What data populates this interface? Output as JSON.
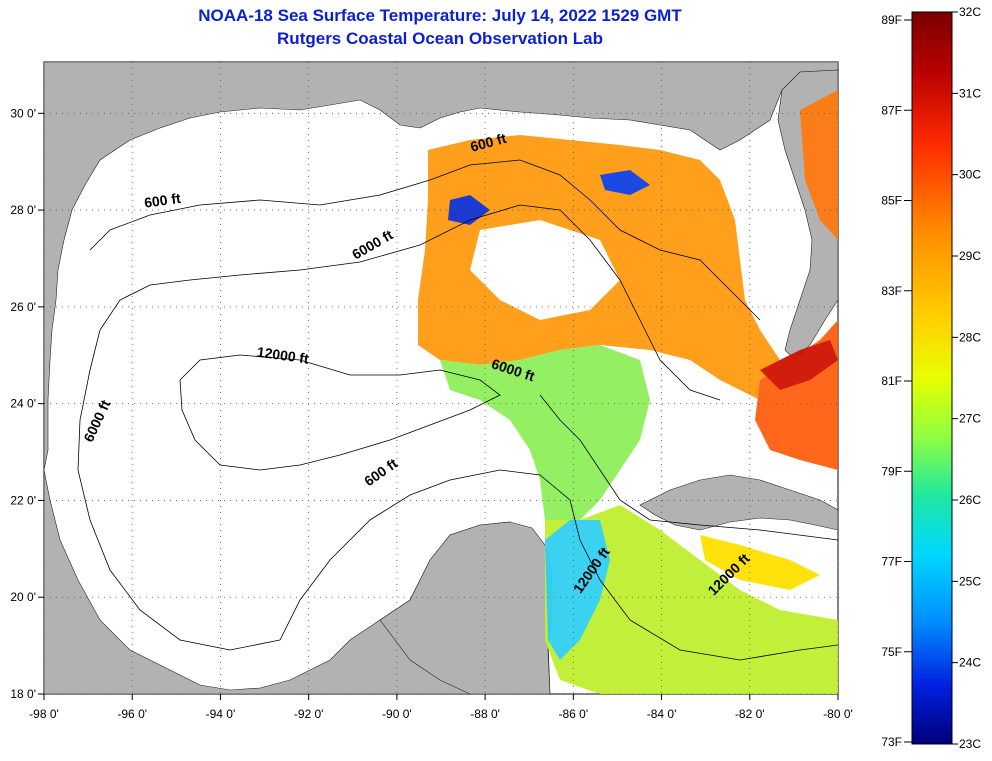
{
  "title": "NOAA-18 Sea Surface Temperature:  July 14, 2022 1529 GMT",
  "subtitle": "Rutgers Coastal Ocean Observation Lab",
  "map": {
    "lon_ticks": [
      "-98 0'",
      "-96 0'",
      "-94 0'",
      "-92 0'",
      "-90 0'",
      "-88 0'",
      "-86 0'",
      "-84 0'",
      "-82 0'",
      "-80 0'"
    ],
    "lat_ticks": [
      "18 0'",
      "20 0'",
      "22 0'",
      "24 0'",
      "26 0'",
      "28 0'",
      "30 0'"
    ],
    "contour_labels": [
      {
        "text": "600 ft",
        "lon": -95.3,
        "lat": 28.1
      },
      {
        "text": "6000 ft",
        "lon": -90.5,
        "lat": 27.2
      },
      {
        "text": "600 ft",
        "lon": -87.9,
        "lat": 29.3
      },
      {
        "text": "12000 ft",
        "lon": -92.6,
        "lat": 24.9
      },
      {
        "text": "6000 ft",
        "lon": -96.7,
        "lat": 23.6
      },
      {
        "text": "6000 ft",
        "lon": -87.4,
        "lat": 24.6
      },
      {
        "text": "600 ft",
        "lon": -90.3,
        "lat": 22.5
      },
      {
        "text": "12000 ft",
        "lon": -85.5,
        "lat": 20.5
      },
      {
        "text": "12000 ft",
        "lon": -82.4,
        "lat": 20.4
      }
    ],
    "colors": {
      "land": "#b2b2b2",
      "nodata": "#ffffff"
    }
  },
  "colorbar": {
    "fahrenheit_labels": [
      "89F",
      "87F",
      "85F",
      "83F",
      "81F",
      "79F",
      "77F",
      "75F",
      "73F"
    ],
    "celsius_labels": [
      "32C",
      "31C",
      "30C",
      "29C",
      "28C",
      "27C",
      "26C",
      "25C",
      "24C",
      "23C"
    ],
    "range_c": [
      23,
      32
    ]
  }
}
